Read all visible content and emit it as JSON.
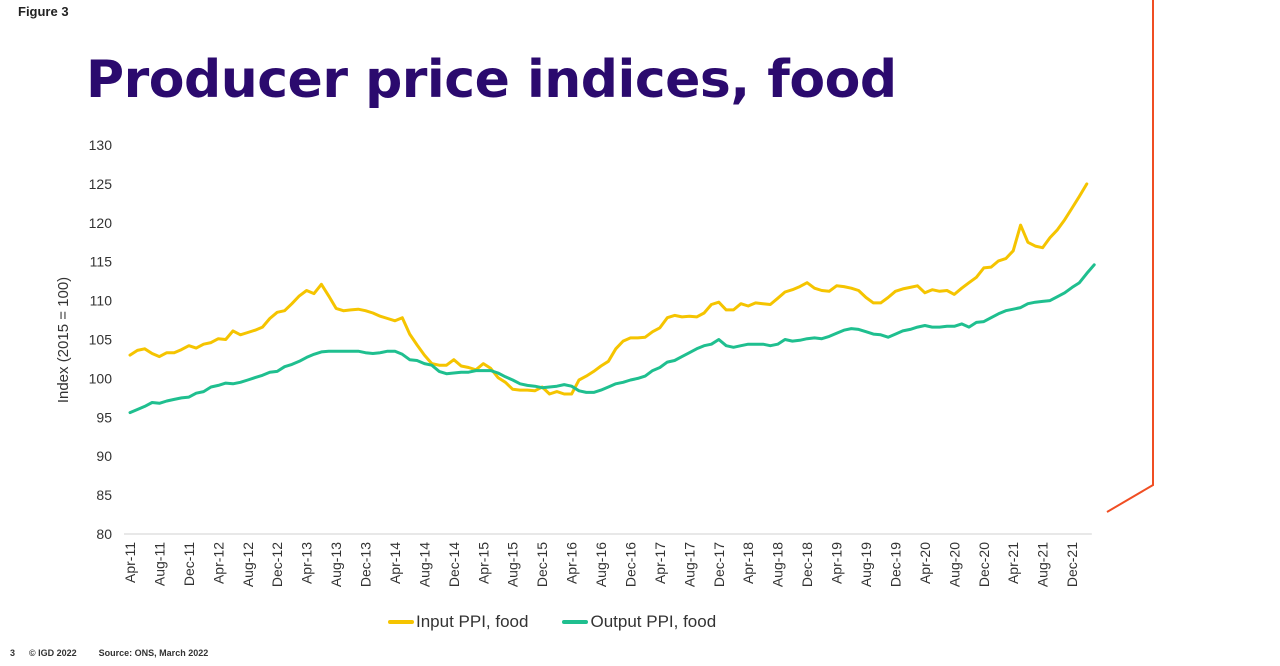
{
  "figure_label": "Figure 3",
  "title": "Producer price indices, food",
  "footer": {
    "page_number": "3",
    "copyright": "© IGD 2022",
    "source": "Source: ONS, March 2022"
  },
  "colors": {
    "title": "#2b0a6e",
    "input": "#f5c400",
    "output": "#1fbf8f",
    "accent_line": "#f04e23",
    "axis": "#e0e0e0"
  },
  "chart_data": {
    "type": "line",
    "title": "Producer price indices, food",
    "xlabel": "",
    "ylabel": "Index (2015 = 100)",
    "ylim": [
      80,
      130
    ],
    "yticks": [
      80,
      85,
      90,
      95,
      100,
      105,
      110,
      115,
      120,
      125,
      130
    ],
    "grid": false,
    "legend": "bottom-center",
    "x_start": "Apr-11",
    "x_end": "Feb-22",
    "xtick_labels": [
      "Apr-11",
      "Aug-11",
      "Dec-11",
      "Apr-12",
      "Aug-12",
      "Dec-12",
      "Apr-13",
      "Aug-13",
      "Dec-13",
      "Apr-14",
      "Aug-14",
      "Dec-14",
      "Apr-15",
      "Aug-15",
      "Dec-15",
      "Apr-16",
      "Aug-16",
      "Dec-16",
      "Apr-17",
      "Aug-17",
      "Dec-17",
      "Apr-18",
      "Aug-18",
      "Dec-18",
      "Apr-19",
      "Aug-19",
      "Dec-19",
      "Apr-20",
      "Aug-20",
      "Dec-20",
      "Apr-21",
      "Aug-21",
      "Dec-21"
    ],
    "xtick_every_months": 4,
    "series": [
      {
        "name": "Input PPI, food",
        "color": "#f5c400",
        "values": [
          103.0,
          103.6,
          103.8,
          103.2,
          102.8,
          103.3,
          103.3,
          103.7,
          104.2,
          103.9,
          104.4,
          104.6,
          105.1,
          105.0,
          106.1,
          105.6,
          105.9,
          106.2,
          106.6,
          107.7,
          108.5,
          108.7,
          109.6,
          110.6,
          111.3,
          110.9,
          112.1,
          110.6,
          109.0,
          108.7,
          108.8,
          108.9,
          108.7,
          108.4,
          108.0,
          107.7,
          107.4,
          107.8,
          105.7,
          104.3,
          103.0,
          101.9,
          101.7,
          101.7,
          102.4,
          101.6,
          101.4,
          101.1,
          101.9,
          101.3,
          100.1,
          99.5,
          98.6,
          98.5,
          98.5,
          98.4,
          98.9,
          98.0,
          98.3,
          98.0,
          98.0,
          99.8,
          100.3,
          100.9,
          101.6,
          102.2,
          103.8,
          104.8,
          105.2,
          105.2,
          105.3,
          106.0,
          106.5,
          107.8,
          108.1,
          107.9,
          108.0,
          107.9,
          108.4,
          109.5,
          109.8,
          108.8,
          108.8,
          109.6,
          109.3,
          109.7,
          109.6,
          109.5,
          110.3,
          111.1,
          111.4,
          111.8,
          112.3,
          111.6,
          111.3,
          111.2,
          111.9,
          111.8,
          111.6,
          111.3,
          110.4,
          109.7,
          109.7,
          110.4,
          111.2,
          111.5,
          111.7,
          111.9,
          111.0,
          111.4,
          111.2,
          111.3,
          110.8,
          111.6,
          112.3,
          113.0,
          114.2,
          114.3,
          115.1,
          115.4,
          116.4,
          119.7,
          117.5,
          117.0,
          116.8,
          118.1,
          119.1,
          120.4,
          121.9,
          123.4,
          125.0
        ]
      },
      {
        "name": "Output PPI, food",
        "color": "#1fbf8f",
        "values": [
          95.6,
          96.0,
          96.4,
          96.9,
          96.8,
          97.1,
          97.3,
          97.5,
          97.6,
          98.1,
          98.3,
          98.9,
          99.1,
          99.4,
          99.3,
          99.5,
          99.8,
          100.1,
          100.4,
          100.8,
          100.9,
          101.5,
          101.8,
          102.2,
          102.7,
          103.1,
          103.4,
          103.5,
          103.5,
          103.5,
          103.5,
          103.5,
          103.3,
          103.2,
          103.3,
          103.5,
          103.5,
          103.1,
          102.4,
          102.3,
          101.9,
          101.7,
          100.9,
          100.6,
          100.7,
          100.8,
          100.8,
          101.0,
          101.0,
          101.0,
          100.7,
          100.2,
          99.8,
          99.3,
          99.1,
          99.0,
          98.8,
          98.9,
          99.0,
          99.2,
          99.0,
          98.4,
          98.2,
          98.2,
          98.5,
          98.9,
          99.3,
          99.5,
          99.8,
          100.0,
          100.3,
          101.0,
          101.4,
          102.1,
          102.3,
          102.8,
          103.3,
          103.8,
          104.2,
          104.4,
          105.0,
          104.2,
          104.0,
          104.2,
          104.4,
          104.4,
          104.4,
          104.2,
          104.4,
          105.0,
          104.8,
          104.9,
          105.1,
          105.2,
          105.1,
          105.4,
          105.8,
          106.2,
          106.4,
          106.3,
          106.0,
          105.7,
          105.6,
          105.3,
          105.7,
          106.1,
          106.3,
          106.6,
          106.8,
          106.6,
          106.6,
          106.7,
          106.7,
          107.0,
          106.6,
          107.2,
          107.3,
          107.8,
          108.3,
          108.7,
          108.9,
          109.1,
          109.6,
          109.8,
          109.9,
          110.0,
          110.5,
          111.0,
          111.7,
          112.3,
          113.5,
          114.6
        ]
      }
    ]
  },
  "legend": [
    {
      "label": "Input PPI, food"
    },
    {
      "label": "Output PPI, food"
    }
  ]
}
